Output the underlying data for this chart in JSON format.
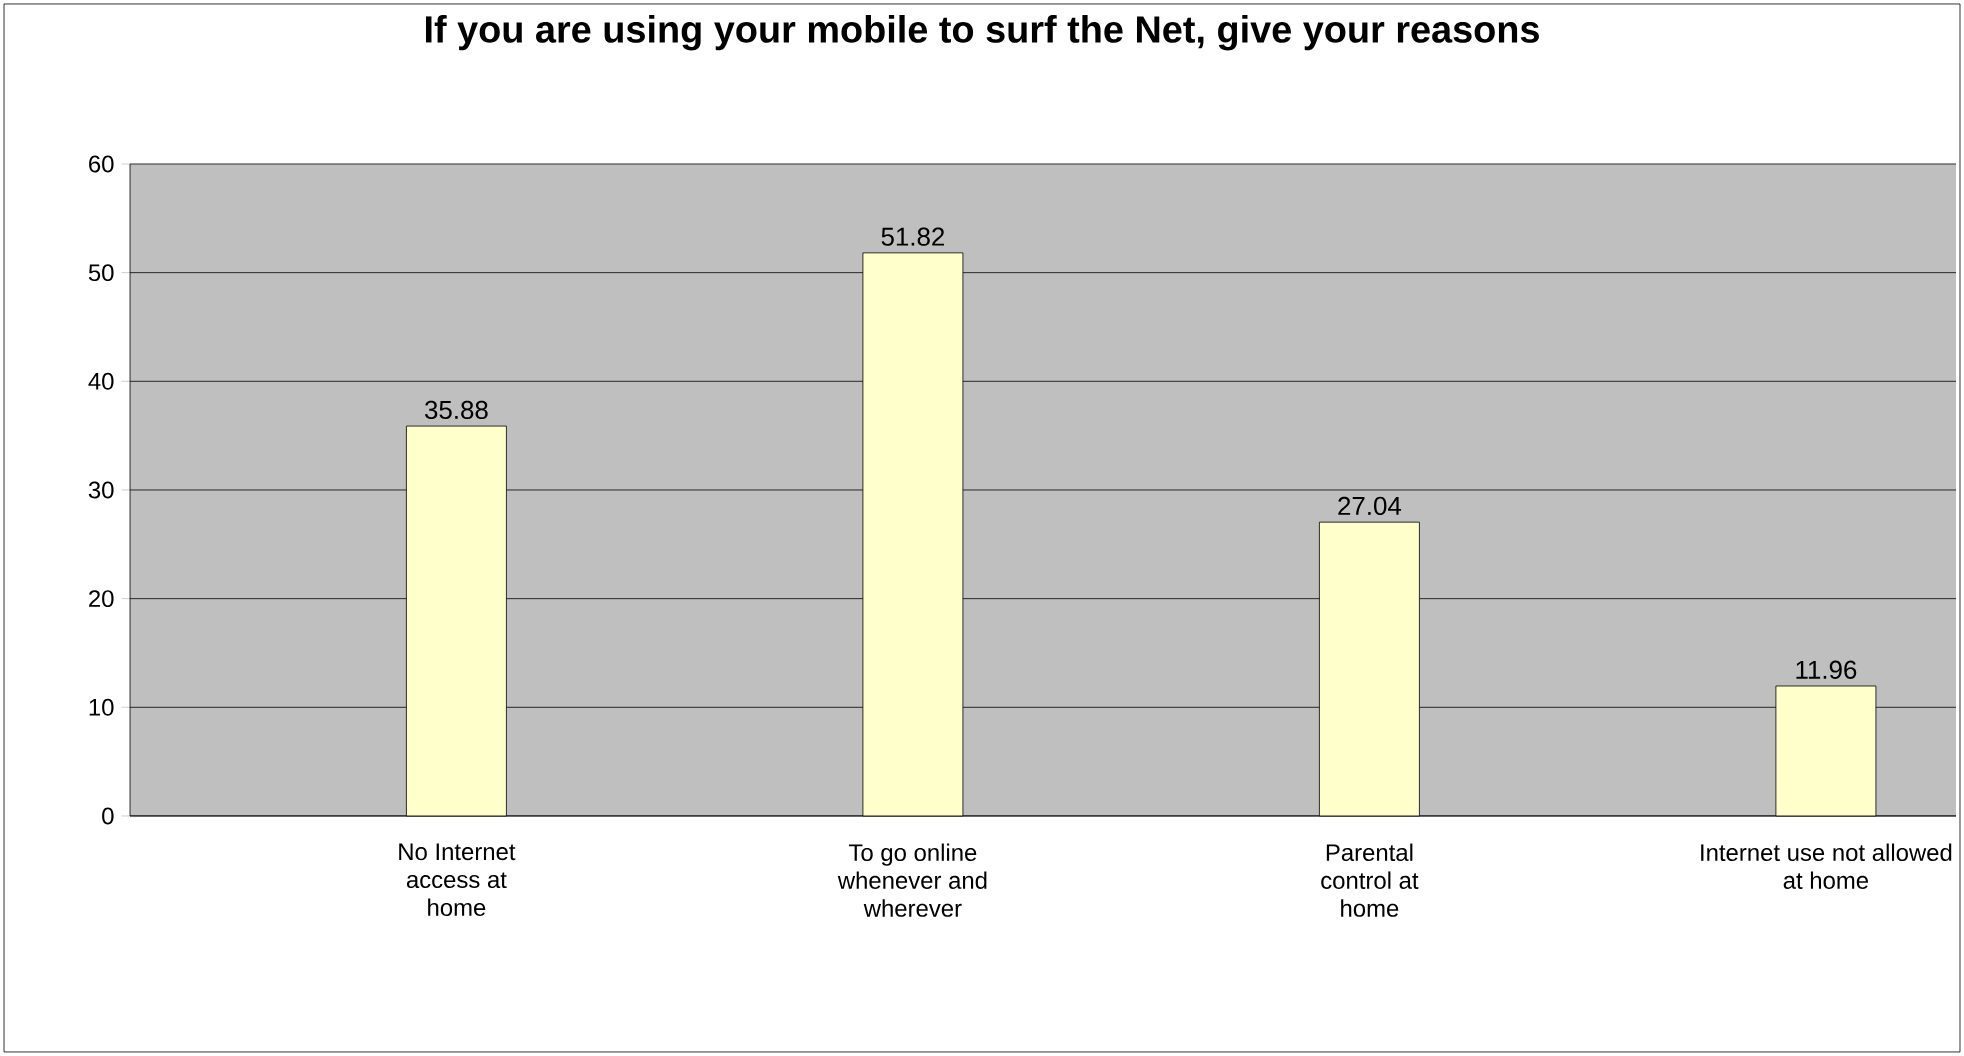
{
  "chart_data": {
    "type": "bar",
    "title": "If you are using your mobile to surf the Net, give your reasons",
    "categories": [
      "No Internet access at home",
      "To go online whenever and wherever",
      "Parental control at home",
      "Internet use not allowed at home"
    ],
    "values": [
      35.88,
      51.82,
      27.04,
      11.96
    ],
    "color": "#ffffcc",
    "ylim": [
      0,
      60
    ],
    "yticks": [
      0,
      10,
      20,
      30,
      40,
      50,
      60
    ],
    "grid": "y",
    "data_labels": true
  }
}
